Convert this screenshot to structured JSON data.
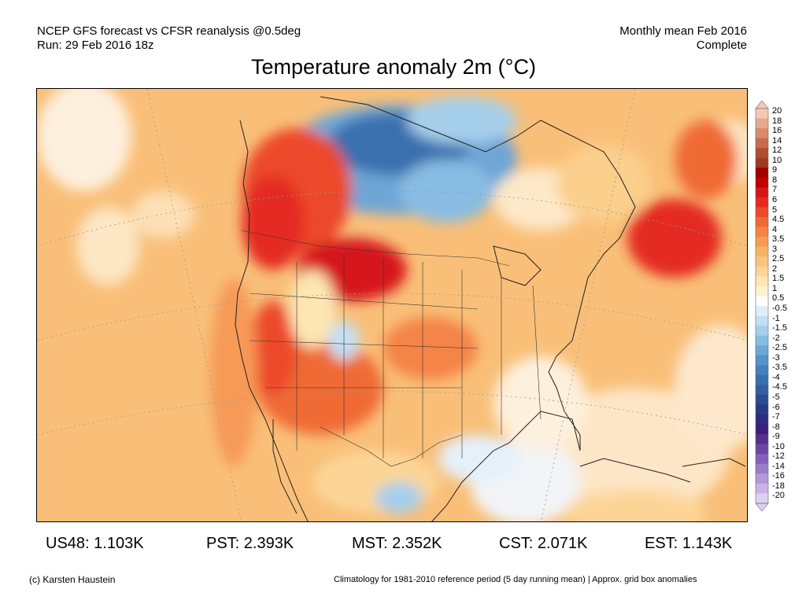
{
  "header": {
    "line1": "NCEP GFS forecast vs CFSR reanalysis @0.5deg",
    "line2": "Run: 29 Feb 2016 18z",
    "right1": "Monthly mean Feb 2016",
    "right2": "Complete"
  },
  "title": "Temperature anomaly 2m (°C)",
  "colorbar": {
    "labels": [
      "20",
      "18",
      "16",
      "14",
      "12",
      "10",
      "9",
      "8",
      "7",
      "6",
      "5",
      "4.5",
      "4",
      "3.5",
      "3",
      "2.5",
      "2",
      "1.5",
      "1",
      "0.5",
      "-0.5",
      "-1",
      "-1.5",
      "-2",
      "-2.5",
      "-3",
      "-3.5",
      "-4",
      "-4.5",
      "-5",
      "-6",
      "-7",
      "-8",
      "-9",
      "-10",
      "-12",
      "-14",
      "-16",
      "-18",
      "-20"
    ],
    "colors": [
      "#f4c8b4",
      "#e9a98c",
      "#d98a6c",
      "#c86a4c",
      "#b14c32",
      "#9e3a22",
      "#a00000",
      "#c00000",
      "#d6141a",
      "#e42a20",
      "#ec4a2c",
      "#f06a36",
      "#f48446",
      "#f69a56",
      "#f8b266",
      "#fac47c",
      "#fcd596",
      "#fde6b2",
      "#fdf2d2",
      "#ffffff",
      "#ddeefa",
      "#c2e0f4",
      "#a6cfec",
      "#88bce2",
      "#6ea6d6",
      "#5792c8",
      "#4580bc",
      "#3a6fae",
      "#335ea0",
      "#2b4c90",
      "#2a3a86",
      "#302a80",
      "#3c1e7c",
      "#55308e",
      "#6c46a4",
      "#8560b8",
      "#9c7cca",
      "#b498da",
      "#c9b4e6",
      "#ddd0f0"
    ]
  },
  "map": {
    "regions_note": "Temperature anomaly field over North America",
    "land_color": "#f8b266",
    "ocean_color": "#fcd596"
  },
  "regions": [
    {
      "label": "US48: 1.103K"
    },
    {
      "label": "PST: 2.393K"
    },
    {
      "label": "MST: 2.352K"
    },
    {
      "label": "CST: 2.071K"
    },
    {
      "label": "EST: 1.143K"
    }
  ],
  "footer": {
    "left": "(c) Karsten Haustein",
    "right": "Climatology for 1981-2010 reference period (5 day running mean) | Approx. grid box anomalies"
  }
}
